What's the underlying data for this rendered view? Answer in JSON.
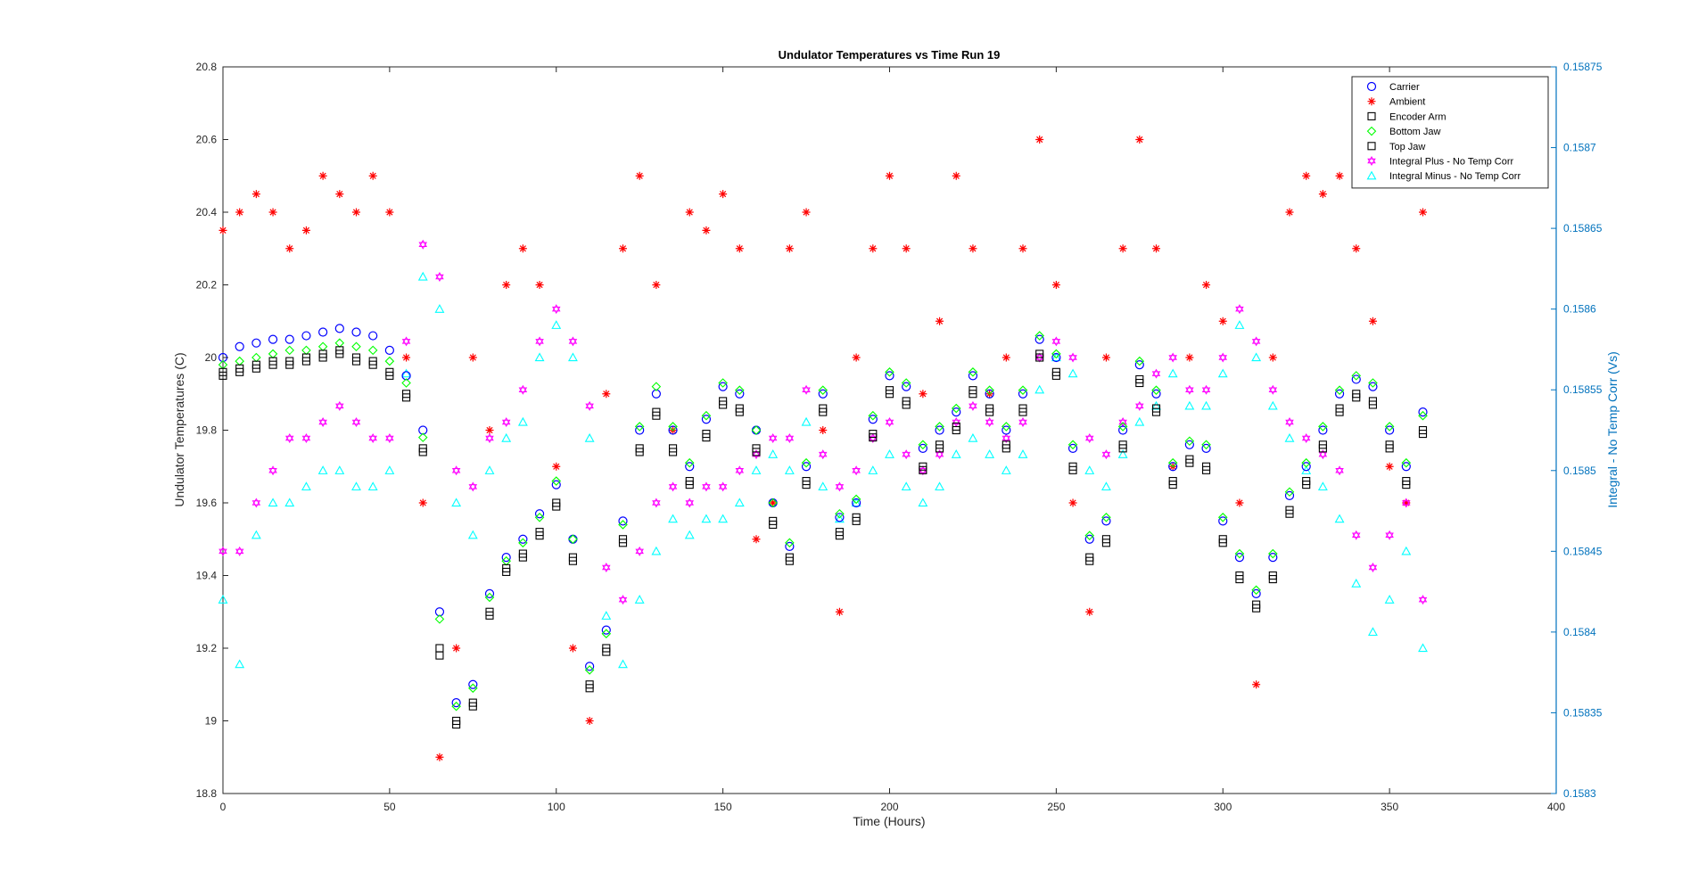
{
  "chart_data": {
    "type": "scatter",
    "title": "Undulator Temperatures vs Time Run 19",
    "xlabel": "Time (Hours)",
    "ylabel": "Undulator Temperatures (C)",
    "y2label": "Integral -  No Temp Corr (Vs)",
    "xlim": [
      0,
      400
    ],
    "ylim": [
      18.8,
      20.8
    ],
    "y2lim": [
      0.1583,
      0.15875
    ],
    "xticks": [
      "0",
      "50",
      "100",
      "150",
      "200",
      "250",
      "300",
      "350",
      "400"
    ],
    "yticks": [
      "18.8",
      "19",
      "19.2",
      "19.4",
      "19.6",
      "19.8",
      "20",
      "20.2",
      "20.4",
      "20.6",
      "20.8"
    ],
    "y2ticks": [
      "0.1583",
      "0.15835",
      "0.1584",
      "0.15845",
      "0.1585",
      "0.15855",
      "0.1586",
      "0.15865",
      "0.1587",
      "0.15875"
    ],
    "grid": false,
    "legend_position": "top-right",
    "x": [
      0,
      5,
      10,
      15,
      20,
      25,
      30,
      35,
      40,
      45,
      50,
      55,
      60,
      65,
      70,
      75,
      80,
      85,
      90,
      95,
      100,
      105,
      110,
      115,
      120,
      125,
      130,
      135,
      140,
      145,
      150,
      155,
      160,
      165,
      170,
      175,
      180,
      185,
      190,
      195,
      200,
      205,
      210,
      215,
      220,
      225,
      230,
      235,
      240,
      245,
      250,
      255,
      260,
      265,
      270,
      275,
      280,
      285,
      290,
      295,
      300,
      305,
      310,
      315,
      320,
      325,
      330,
      335,
      340,
      345,
      350,
      355,
      360
    ],
    "series": [
      {
        "name": "Carrier",
        "axis": "left",
        "marker": "circle",
        "color": "#0000ff",
        "values": [
          20.0,
          20.03,
          20.04,
          20.05,
          20.05,
          20.06,
          20.07,
          20.08,
          20.07,
          20.06,
          20.02,
          19.95,
          19.8,
          19.3,
          19.05,
          19.1,
          19.35,
          19.45,
          19.5,
          19.57,
          19.65,
          19.5,
          19.15,
          19.25,
          19.55,
          19.8,
          19.9,
          19.8,
          19.7,
          19.83,
          19.92,
          19.9,
          19.8,
          19.6,
          19.48,
          19.7,
          19.9,
          19.56,
          19.6,
          19.83,
          19.95,
          19.92,
          19.75,
          19.8,
          19.85,
          19.95,
          19.9,
          19.8,
          19.9,
          20.05,
          20.0,
          19.75,
          19.5,
          19.55,
          19.8,
          19.98,
          19.9,
          19.7,
          19.76,
          19.75,
          19.55,
          19.45,
          19.35,
          19.45,
          19.62,
          19.7,
          19.8,
          19.9,
          19.94,
          19.92,
          19.8,
          19.7,
          19.85
        ]
      },
      {
        "name": "Ambient",
        "axis": "left",
        "marker": "asterisk",
        "color": "#ff0000",
        "values": [
          20.35,
          20.4,
          20.45,
          20.4,
          20.3,
          20.35,
          20.5,
          20.45,
          20.4,
          20.5,
          20.4,
          20.0,
          19.6,
          18.9,
          19.2,
          20.0,
          19.8,
          20.2,
          20.3,
          20.2,
          19.7,
          19.2,
          19.0,
          19.9,
          20.3,
          20.5,
          20.2,
          19.8,
          20.4,
          20.35,
          20.45,
          20.3,
          19.5,
          19.6,
          20.3,
          20.4,
          19.8,
          19.3,
          20.0,
          20.3,
          20.5,
          20.3,
          19.9,
          20.1,
          20.5,
          20.3,
          19.9,
          20.0,
          20.3,
          20.6,
          20.2,
          19.6,
          19.3,
          20.0,
          20.3,
          20.6,
          20.3,
          19.7,
          20.0,
          20.2,
          20.1,
          19.6,
          19.1,
          20.0,
          20.4,
          20.5,
          20.45,
          20.5,
          20.3,
          20.1,
          19.7,
          19.6,
          20.4
        ]
      },
      {
        "name": "Encoder Arm",
        "axis": "left",
        "marker": "square",
        "color": "#000000",
        "values": [
          19.96,
          19.97,
          19.98,
          19.99,
          19.99,
          20.0,
          20.01,
          20.02,
          20.0,
          19.99,
          19.96,
          19.9,
          19.75,
          19.2,
          19.0,
          19.05,
          19.3,
          19.42,
          19.46,
          19.52,
          19.6,
          19.45,
          19.1,
          19.2,
          19.5,
          19.75,
          19.85,
          19.75,
          19.66,
          19.79,
          19.88,
          19.86,
          19.75,
          19.55,
          19.45,
          19.66,
          19.86,
          19.52,
          19.56,
          19.79,
          19.91,
          19.88,
          19.7,
          19.76,
          19.81,
          19.91,
          19.86,
          19.76,
          19.86,
          20.01,
          19.96,
          19.7,
          19.45,
          19.5,
          19.76,
          19.94,
          19.86,
          19.66,
          19.72,
          19.7,
          19.5,
          19.4,
          19.32,
          19.4,
          19.58,
          19.66,
          19.76,
          19.86,
          19.9,
          19.88,
          19.76,
          19.66,
          19.8
        ]
      },
      {
        "name": "Bottom Jaw",
        "axis": "left",
        "marker": "diamond",
        "color": "#00ff00",
        "values": [
          19.98,
          19.99,
          20.0,
          20.01,
          20.02,
          20.02,
          20.03,
          20.04,
          20.03,
          20.02,
          19.99,
          19.93,
          19.78,
          19.28,
          19.04,
          19.09,
          19.34,
          19.44,
          19.49,
          19.56,
          19.66,
          19.5,
          19.14,
          19.24,
          19.54,
          19.81,
          19.92,
          19.81,
          19.71,
          19.84,
          19.93,
          19.91,
          19.8,
          19.6,
          19.49,
          19.71,
          19.91,
          19.57,
          19.61,
          19.84,
          19.96,
          19.93,
          19.76,
          19.81,
          19.86,
          19.96,
          19.91,
          19.81,
          19.91,
          20.06,
          20.01,
          19.76,
          19.51,
          19.56,
          19.81,
          19.99,
          19.91,
          19.71,
          19.77,
          19.76,
          19.56,
          19.46,
          19.36,
          19.46,
          19.63,
          19.71,
          19.81,
          19.91,
          19.95,
          19.93,
          19.81,
          19.71,
          19.84
        ]
      },
      {
        "name": "Top Jaw",
        "axis": "left",
        "marker": "square",
        "color": "#000000",
        "values": [
          19.95,
          19.96,
          19.97,
          19.98,
          19.98,
          19.99,
          20.0,
          20.01,
          19.99,
          19.98,
          19.95,
          19.89,
          19.74,
          19.18,
          18.99,
          19.04,
          19.29,
          19.41,
          19.45,
          19.51,
          19.59,
          19.44,
          19.09,
          19.19,
          19.49,
          19.74,
          19.84,
          19.74,
          19.65,
          19.78,
          19.87,
          19.85,
          19.74,
          19.54,
          19.44,
          19.65,
          19.85,
          19.51,
          19.55,
          19.78,
          19.9,
          19.87,
          19.69,
          19.75,
          19.8,
          19.9,
          19.85,
          19.75,
          19.85,
          20.0,
          19.95,
          19.69,
          19.44,
          19.49,
          19.75,
          19.93,
          19.85,
          19.65,
          19.71,
          19.69,
          19.49,
          19.39,
          19.31,
          19.39,
          19.57,
          19.65,
          19.75,
          19.85,
          19.89,
          19.87,
          19.75,
          19.65,
          19.79
        ]
      },
      {
        "name": "Integral Plus -  No Temp Corr",
        "axis": "right",
        "marker": "hexagram",
        "color": "#ff00ff",
        "values": [
          0.15845,
          0.15845,
          0.15848,
          0.1585,
          0.15852,
          0.15852,
          0.15853,
          0.15854,
          0.15853,
          0.15852,
          0.15852,
          0.15858,
          0.15864,
          0.15862,
          0.1585,
          0.15849,
          0.15852,
          0.15853,
          0.15855,
          0.15858,
          0.1586,
          0.15858,
          0.15854,
          0.15844,
          0.15842,
          0.15845,
          0.15848,
          0.15849,
          0.15848,
          0.15849,
          0.15849,
          0.1585,
          0.15851,
          0.15852,
          0.15852,
          0.15855,
          0.15851,
          0.15849,
          0.1585,
          0.15852,
          0.15853,
          0.15851,
          0.1585,
          0.15851,
          0.15853,
          0.15854,
          0.15853,
          0.15852,
          0.15853,
          0.15857,
          0.15858,
          0.15857,
          0.15852,
          0.15851,
          0.15853,
          0.15854,
          0.15856,
          0.15857,
          0.15855,
          0.15855,
          0.15857,
          0.1586,
          0.15858,
          0.15855,
          0.15853,
          0.15852,
          0.15851,
          0.1585,
          0.15846,
          0.15844,
          0.15846,
          0.15848,
          0.15842
        ]
      },
      {
        "name": "Integral Minus -  No Temp Corr",
        "axis": "right",
        "marker": "triangle",
        "color": "#00ffff",
        "values": [
          0.15842,
          0.15838,
          0.15846,
          0.15848,
          0.15848,
          0.15849,
          0.1585,
          0.1585,
          0.15849,
          0.15849,
          0.1585,
          0.15856,
          0.15862,
          0.1586,
          0.15848,
          0.15846,
          0.1585,
          0.15852,
          0.15853,
          0.15857,
          0.15859,
          0.15857,
          0.15852,
          0.15841,
          0.15838,
          0.15842,
          0.15845,
          0.15847,
          0.15846,
          0.15847,
          0.15847,
          0.15848,
          0.1585,
          0.15851,
          0.1585,
          0.15853,
          0.15849,
          0.15847,
          0.15848,
          0.1585,
          0.15851,
          0.15849,
          0.15848,
          0.15849,
          0.15851,
          0.15852,
          0.15851,
          0.1585,
          0.15851,
          0.15855,
          0.15857,
          0.15856,
          0.1585,
          0.15849,
          0.15851,
          0.15853,
          0.15854,
          0.15856,
          0.15854,
          0.15854,
          0.15856,
          0.15859,
          0.15857,
          0.15854,
          0.15852,
          0.1585,
          0.15849,
          0.15847,
          0.15843,
          0.1584,
          0.15842,
          0.15845,
          0.15839
        ]
      }
    ]
  }
}
